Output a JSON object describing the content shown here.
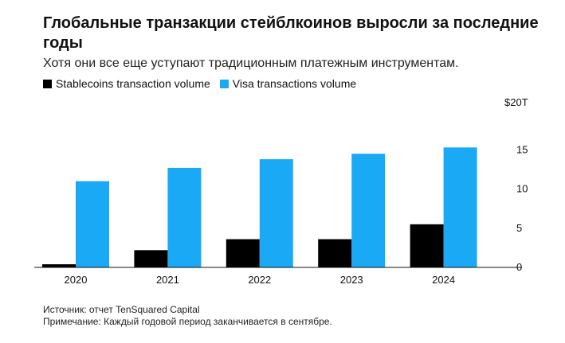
{
  "chart_data": {
    "type": "bar",
    "title": "Глобальные транзакции стейблкоинов выросли за последние годы",
    "subtitle": "Хотя они все еще уступают традиционным платежным инструментам.",
    "categories": [
      "2020",
      "2021",
      "2022",
      "2023",
      "2024"
    ],
    "series": [
      {
        "name": "Stablecoins transaction volume",
        "color": "#000000",
        "values": [
          0.4,
          2.2,
          3.6,
          3.6,
          5.5
        ]
      },
      {
        "name": "Visa transactions volume",
        "color": "#1aa9f4",
        "values": [
          11.0,
          12.7,
          13.8,
          14.5,
          15.3
        ]
      }
    ],
    "ylim": [
      0,
      20
    ],
    "yticks": [
      {
        "value": 0,
        "label": "0"
      },
      {
        "value": 5,
        "label": "5"
      },
      {
        "value": 10,
        "label": "10"
      },
      {
        "value": 15,
        "label": "15"
      },
      {
        "value": 20,
        "label": "$20T"
      }
    ],
    "xlabel": "",
    "ylabel": "",
    "grid": false,
    "legend_position": "top-left"
  },
  "footer": {
    "source": "Источник: отчет TenSquared Capital",
    "note": "Примечание: Каждый годовой период заканчивается в сентябре."
  }
}
